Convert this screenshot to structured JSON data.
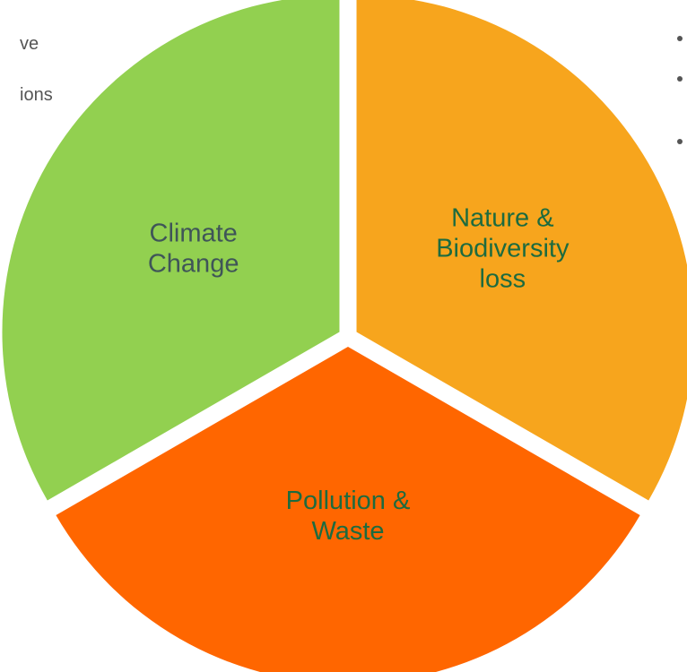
{
  "background_text": [
    "ve",
    "ions"
  ],
  "segments": [
    {
      "label_lines": [
        "Nature &",
        "Biodiversity",
        "loss"
      ],
      "color": "#f7a51d",
      "text_color": "#1d6b3f"
    },
    {
      "label_lines": [
        "Pollution &",
        "Waste"
      ],
      "color": "#ff6600",
      "text_color": "#1d6b3f"
    },
    {
      "label_lines": [
        "Climate",
        "Change"
      ],
      "color": "#92d050",
      "text_color": "#3f5558"
    }
  ]
}
